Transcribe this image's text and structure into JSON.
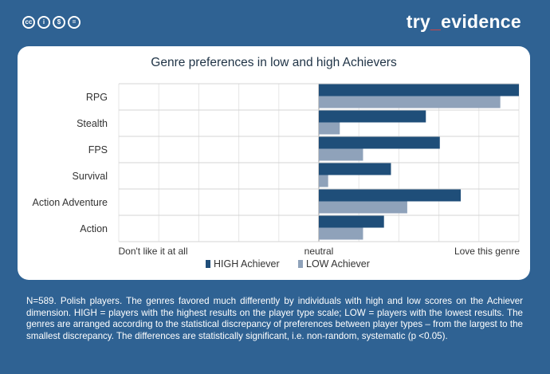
{
  "header": {
    "brand_prefix": "try",
    "brand_sep": "_",
    "brand_suffix": "evidence",
    "license_icons": [
      "cc-icon",
      "by-icon",
      "nc-icon",
      "nd-icon"
    ],
    "license_glyphs": [
      "cc",
      "i",
      "$",
      "="
    ]
  },
  "chart_data": {
    "type": "bar",
    "orientation": "horizontal",
    "title": "Genre preferences in low and high Achievers",
    "categories": [
      "RPG",
      "Stealth",
      "FPS",
      "Survival",
      "Action Adventure",
      "Action"
    ],
    "series": [
      {
        "name": "HIGH Achiever",
        "color": "#1f4e79",
        "values": [
          0.43,
          0.23,
          0.26,
          0.155,
          0.305,
          0.14
        ]
      },
      {
        "name": "LOW Achiever",
        "color": "#8fa2ba",
        "values": [
          0.39,
          0.045,
          0.095,
          0.02,
          0.19,
          0.095
        ]
      }
    ],
    "xlim": [
      -0.43,
      0.43
    ],
    "xtick_labels": [
      "Don't like it at all",
      "neutral",
      "Love this genre"
    ],
    "grid": true,
    "legend_position": "bottom"
  },
  "footnote": "N=589. Polish players. The genres favored much differently by individuals with high and low scores on the Achiever dimension. HIGH = players with the highest results on the player type scale; LOW = players with the lowest results. The genres are arranged according to the statistical discrepancy of preferences between player types – from the largest to the smallest discrepancy. The differences are statistically significant, i.e. non-random, systematic (p <0.05)."
}
